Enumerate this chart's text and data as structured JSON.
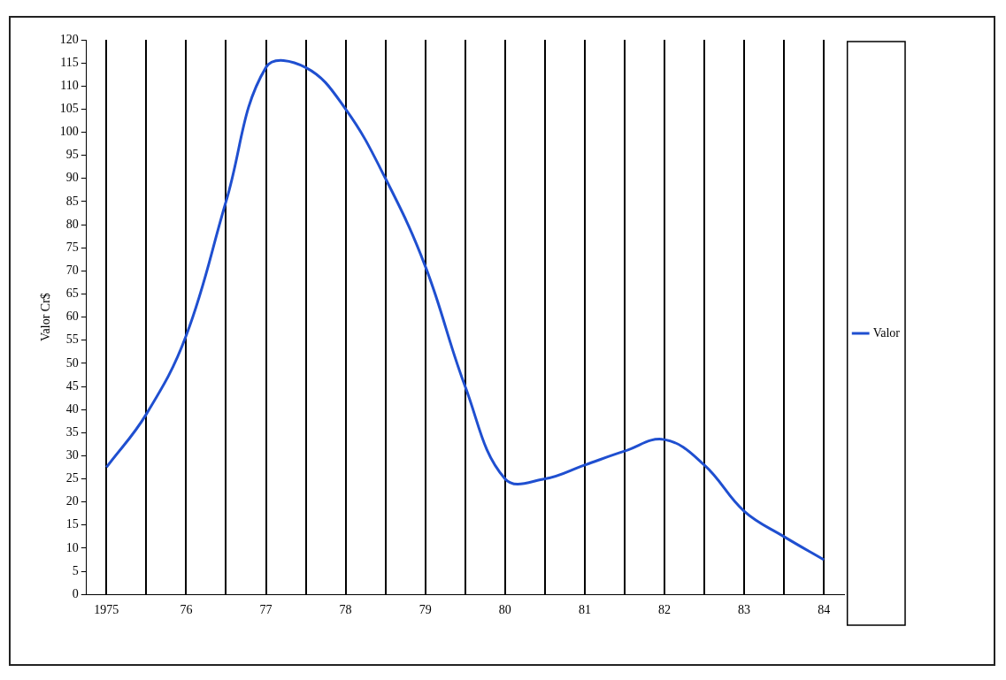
{
  "chart_data": {
    "type": "line",
    "ylabel": "Valor Cr$",
    "categories": [
      "1975",
      null,
      "76",
      null,
      "77",
      null,
      "78",
      null,
      "79",
      null,
      "80",
      null,
      "81",
      null,
      "82",
      null,
      "83",
      null,
      "84"
    ],
    "series": [
      {
        "name": "Valor",
        "color": "#1f4fd0",
        "values": [
          27.5,
          39,
          56,
          85,
          114,
          114,
          105,
          90,
          71,
          45,
          25,
          25,
          28,
          31,
          33.5,
          28,
          18,
          12.5,
          7.5
        ]
      }
    ],
    "ylim": [
      0,
      120
    ],
    "yticks": [
      0,
      5,
      10,
      15,
      20,
      25,
      30,
      35,
      40,
      45,
      50,
      55,
      60,
      65,
      70,
      75,
      80,
      85,
      90,
      95,
      100,
      105,
      110,
      115,
      120
    ],
    "grid": "x",
    "legend": "right",
    "marker": "none",
    "line_style": "solid"
  }
}
